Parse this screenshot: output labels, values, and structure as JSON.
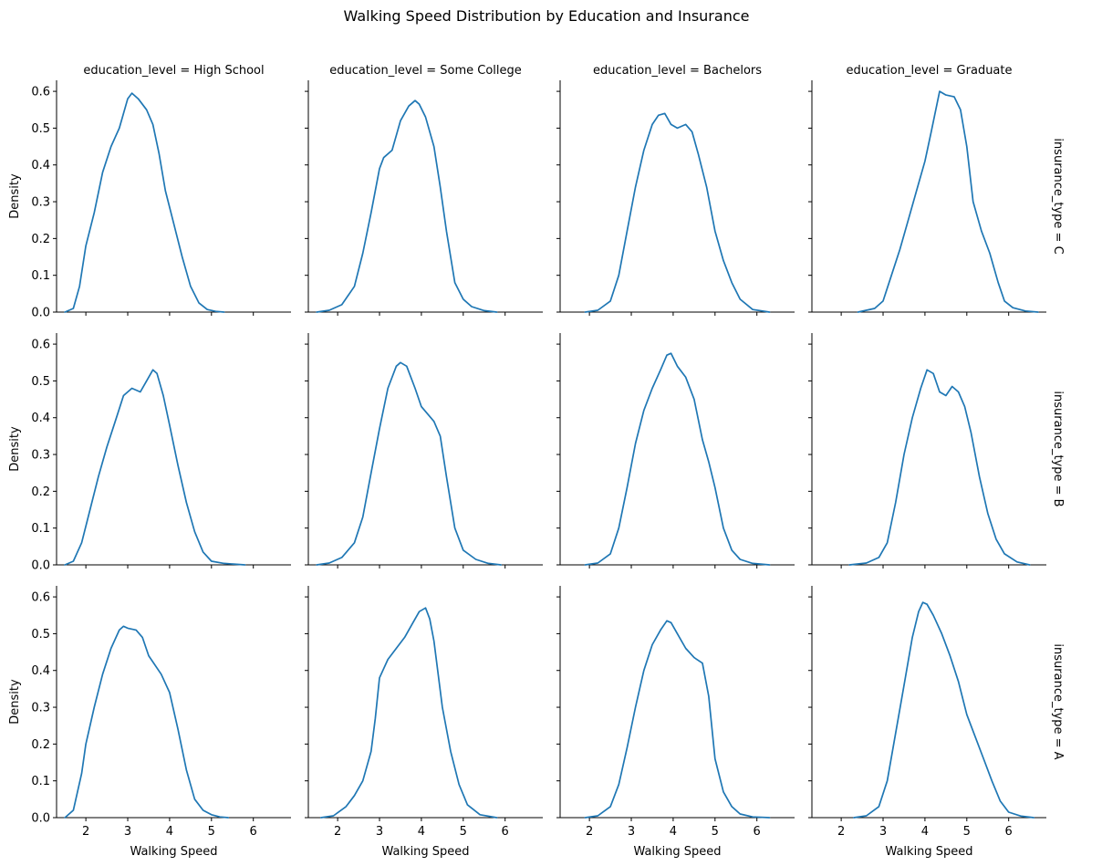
{
  "chart_data": {
    "type": "line",
    "title": "Walking Speed Distribution by Education and Insurance",
    "xlabel": "Walking Speed",
    "ylabel": "Density",
    "xlim": [
      1.3,
      6.9
    ],
    "ylim": [
      0,
      0.63
    ],
    "xticks": [
      2,
      3,
      4,
      5,
      6
    ],
    "yticks": [
      0.0,
      0.1,
      0.2,
      0.3,
      0.4,
      0.5,
      0.6
    ],
    "xtick_labels": [
      "2",
      "3",
      "4",
      "5",
      "6"
    ],
    "ytick_labels": [
      "0.0",
      "0.1",
      "0.2",
      "0.3",
      "0.4",
      "0.5",
      "0.6"
    ],
    "grid": false,
    "line_color": "#1f77b4",
    "columns": [
      "education_level = High School",
      "education_level = Some College",
      "education_level = Bachelors",
      "education_level = Graduate"
    ],
    "rows": [
      "insurance_type = C",
      "insurance_type = B",
      "insurance_type = A"
    ],
    "panels": [
      [
        {
          "x": [
            1.5,
            1.7,
            1.85,
            2.0,
            2.2,
            2.4,
            2.6,
            2.8,
            3.0,
            3.1,
            3.25,
            3.45,
            3.6,
            3.75,
            3.9,
            4.1,
            4.3,
            4.5,
            4.7,
            4.9,
            5.1,
            5.3
          ],
          "y": [
            0.0,
            0.01,
            0.07,
            0.18,
            0.27,
            0.38,
            0.45,
            0.5,
            0.58,
            0.595,
            0.58,
            0.55,
            0.51,
            0.43,
            0.33,
            0.24,
            0.15,
            0.07,
            0.025,
            0.007,
            0.002,
            0.0
          ]
        },
        {
          "x": [
            1.5,
            1.8,
            2.1,
            2.4,
            2.6,
            2.8,
            3.0,
            3.1,
            3.3,
            3.5,
            3.7,
            3.85,
            3.95,
            4.1,
            4.3,
            4.45,
            4.6,
            4.8,
            5.0,
            5.2,
            5.5,
            5.8
          ],
          "y": [
            0.0,
            0.005,
            0.02,
            0.07,
            0.16,
            0.27,
            0.39,
            0.42,
            0.44,
            0.52,
            0.56,
            0.575,
            0.565,
            0.53,
            0.45,
            0.34,
            0.22,
            0.08,
            0.035,
            0.015,
            0.004,
            0.0
          ]
        },
        {
          "x": [
            1.9,
            2.2,
            2.5,
            2.7,
            2.9,
            3.1,
            3.3,
            3.5,
            3.65,
            3.8,
            3.95,
            4.1,
            4.3,
            4.45,
            4.6,
            4.8,
            5.0,
            5.2,
            5.4,
            5.6,
            5.9,
            6.3
          ],
          "y": [
            0.0,
            0.005,
            0.03,
            0.1,
            0.22,
            0.34,
            0.44,
            0.51,
            0.535,
            0.54,
            0.51,
            0.5,
            0.51,
            0.49,
            0.43,
            0.34,
            0.22,
            0.14,
            0.08,
            0.035,
            0.007,
            0.0
          ]
        },
        {
          "x": [
            2.4,
            2.8,
            3.0,
            3.2,
            3.4,
            3.6,
            3.8,
            4.0,
            4.15,
            4.35,
            4.5,
            4.7,
            4.85,
            5.0,
            5.15,
            5.35,
            5.55,
            5.75,
            5.9,
            6.1,
            6.4,
            6.7
          ],
          "y": [
            0.0,
            0.01,
            0.03,
            0.1,
            0.17,
            0.25,
            0.33,
            0.41,
            0.49,
            0.6,
            0.59,
            0.585,
            0.55,
            0.45,
            0.3,
            0.22,
            0.16,
            0.08,
            0.03,
            0.012,
            0.003,
            0.0
          ]
        }
      ],
      [
        {
          "x": [
            1.5,
            1.7,
            1.9,
            2.1,
            2.3,
            2.5,
            2.7,
            2.9,
            3.1,
            3.3,
            3.45,
            3.6,
            3.7,
            3.85,
            4.0,
            4.2,
            4.4,
            4.6,
            4.8,
            5.0,
            5.3,
            5.8
          ],
          "y": [
            0.0,
            0.01,
            0.06,
            0.15,
            0.24,
            0.32,
            0.39,
            0.46,
            0.48,
            0.47,
            0.5,
            0.53,
            0.52,
            0.46,
            0.38,
            0.27,
            0.17,
            0.09,
            0.035,
            0.01,
            0.004,
            0.0
          ]
        },
        {
          "x": [
            1.5,
            1.8,
            2.1,
            2.4,
            2.6,
            2.8,
            3.0,
            3.2,
            3.4,
            3.5,
            3.65,
            3.85,
            4.0,
            4.15,
            4.3,
            4.45,
            4.6,
            4.8,
            5.0,
            5.3,
            5.6,
            5.9
          ],
          "y": [
            0.0,
            0.005,
            0.02,
            0.06,
            0.13,
            0.25,
            0.37,
            0.48,
            0.54,
            0.55,
            0.54,
            0.48,
            0.43,
            0.41,
            0.39,
            0.35,
            0.24,
            0.1,
            0.04,
            0.015,
            0.004,
            0.0
          ]
        },
        {
          "x": [
            1.9,
            2.2,
            2.5,
            2.7,
            2.9,
            3.1,
            3.3,
            3.5,
            3.7,
            3.85,
            3.95,
            4.1,
            4.3,
            4.5,
            4.7,
            4.85,
            5.0,
            5.2,
            5.4,
            5.6,
            5.9,
            6.3
          ],
          "y": [
            0.0,
            0.005,
            0.03,
            0.1,
            0.21,
            0.33,
            0.42,
            0.48,
            0.53,
            0.57,
            0.575,
            0.54,
            0.51,
            0.45,
            0.34,
            0.28,
            0.21,
            0.1,
            0.04,
            0.015,
            0.004,
            0.0
          ]
        },
        {
          "x": [
            2.2,
            2.6,
            2.9,
            3.1,
            3.3,
            3.5,
            3.7,
            3.9,
            4.05,
            4.2,
            4.35,
            4.5,
            4.65,
            4.8,
            4.95,
            5.1,
            5.3,
            5.5,
            5.7,
            5.9,
            6.2,
            6.5
          ],
          "y": [
            0.0,
            0.005,
            0.02,
            0.06,
            0.17,
            0.3,
            0.4,
            0.48,
            0.53,
            0.52,
            0.47,
            0.46,
            0.485,
            0.47,
            0.43,
            0.36,
            0.24,
            0.14,
            0.07,
            0.03,
            0.008,
            0.0
          ]
        }
      ],
      [
        {
          "x": [
            1.5,
            1.7,
            1.9,
            2.0,
            2.2,
            2.4,
            2.6,
            2.8,
            2.9,
            3.0,
            3.2,
            3.35,
            3.5,
            3.8,
            4.0,
            4.2,
            4.4,
            4.6,
            4.8,
            5.0,
            5.2,
            5.4
          ],
          "y": [
            0.0,
            0.02,
            0.12,
            0.2,
            0.3,
            0.39,
            0.46,
            0.51,
            0.52,
            0.515,
            0.51,
            0.49,
            0.44,
            0.39,
            0.34,
            0.24,
            0.13,
            0.05,
            0.02,
            0.008,
            0.002,
            0.0
          ]
        },
        {
          "x": [
            1.6,
            1.9,
            2.2,
            2.4,
            2.6,
            2.8,
            2.9,
            3.0,
            3.2,
            3.4,
            3.6,
            3.8,
            3.95,
            4.1,
            4.2,
            4.3,
            4.5,
            4.7,
            4.9,
            5.1,
            5.4,
            5.8
          ],
          "y": [
            0.0,
            0.005,
            0.03,
            0.06,
            0.1,
            0.18,
            0.27,
            0.38,
            0.43,
            0.46,
            0.49,
            0.53,
            0.56,
            0.57,
            0.54,
            0.48,
            0.3,
            0.18,
            0.09,
            0.035,
            0.008,
            0.0
          ]
        },
        {
          "x": [
            1.9,
            2.2,
            2.5,
            2.7,
            2.9,
            3.1,
            3.3,
            3.5,
            3.7,
            3.85,
            3.95,
            4.1,
            4.3,
            4.5,
            4.7,
            4.85,
            5.0,
            5.2,
            5.4,
            5.6,
            5.9,
            6.3
          ],
          "y": [
            0.0,
            0.005,
            0.03,
            0.09,
            0.19,
            0.3,
            0.4,
            0.47,
            0.51,
            0.535,
            0.53,
            0.5,
            0.46,
            0.435,
            0.42,
            0.33,
            0.16,
            0.07,
            0.03,
            0.01,
            0.002,
            0.0
          ]
        },
        {
          "x": [
            2.3,
            2.6,
            2.9,
            3.1,
            3.3,
            3.5,
            3.7,
            3.85,
            3.95,
            4.05,
            4.2,
            4.4,
            4.6,
            4.8,
            5.0,
            5.2,
            5.4,
            5.6,
            5.8,
            6.0,
            6.3,
            6.6
          ],
          "y": [
            0.0,
            0.005,
            0.03,
            0.1,
            0.23,
            0.36,
            0.49,
            0.56,
            0.585,
            0.58,
            0.55,
            0.5,
            0.44,
            0.37,
            0.28,
            0.22,
            0.16,
            0.1,
            0.045,
            0.015,
            0.004,
            0.0
          ]
        }
      ]
    ]
  }
}
